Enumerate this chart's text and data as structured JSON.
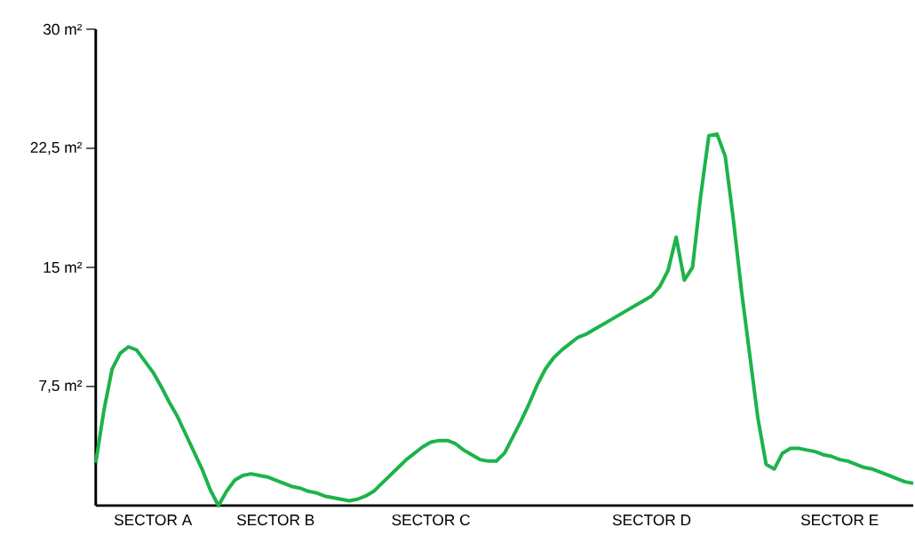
{
  "chart_data": {
    "type": "line",
    "color": "#1db34a",
    "marker": "none",
    "line_style": "solid",
    "categories": [
      null,
      null,
      null,
      null,
      null,
      null,
      null,
      "SECTOR A",
      null,
      null,
      null,
      null,
      null,
      null,
      null,
      null,
      null,
      null,
      null,
      null,
      null,
      null,
      "SECTOR B",
      null,
      null,
      null,
      null,
      null,
      null,
      null,
      null,
      null,
      null,
      null,
      null,
      null,
      null,
      null,
      null,
      null,
      null,
      "SECTOR C",
      null,
      null,
      null,
      null,
      null,
      null,
      null,
      null,
      null,
      null,
      null,
      null,
      null,
      null,
      null,
      null,
      null,
      null,
      null,
      null,
      null,
      null,
      null,
      null,
      null,
      null,
      "SECTOR D",
      null,
      null,
      null,
      null,
      null,
      null,
      null,
      null,
      null,
      null,
      null,
      null,
      null,
      null,
      null,
      null,
      null,
      null,
      null,
      null,
      null,
      null,
      "SECTOR E",
      null,
      null,
      null,
      null,
      null,
      null,
      null,
      null,
      null
    ],
    "values": [
      2.7,
      6.0,
      8.6,
      9.6,
      10.0,
      9.8,
      9.1,
      8.4,
      7.5,
      6.5,
      5.6,
      4.5,
      3.4,
      2.3,
      1.0,
      0.0,
      0.9,
      1.6,
      1.9,
      2.0,
      1.9,
      1.8,
      1.6,
      1.4,
      1.2,
      1.1,
      0.9,
      0.8,
      0.6,
      0.5,
      0.4,
      0.3,
      0.4,
      0.6,
      0.9,
      1.4,
      1.9,
      2.4,
      2.9,
      3.3,
      3.7,
      4.0,
      4.1,
      4.1,
      3.9,
      3.5,
      3.2,
      2.9,
      2.8,
      2.8,
      3.3,
      4.3,
      5.3,
      6.4,
      7.6,
      8.6,
      9.3,
      9.8,
      10.2,
      10.6,
      10.8,
      11.1,
      11.4,
      11.7,
      12.0,
      12.3,
      12.6,
      12.9,
      13.2,
      13.8,
      14.8,
      16.9,
      14.2,
      15.0,
      19.5,
      23.3,
      23.4,
      22.0,
      18.0,
      13.5,
      9.5,
      5.5,
      2.6,
      2.3,
      3.3,
      3.6,
      3.6,
      3.5,
      3.4,
      3.2,
      3.1,
      2.9,
      2.8,
      2.6,
      2.4,
      2.3,
      2.1,
      1.9,
      1.7,
      1.5,
      1.4
    ],
    "ylim": [
      0,
      30
    ],
    "yticks": [
      {
        "value": 7.5,
        "label": "7,5 m²"
      },
      {
        "value": 15,
        "label": "15 m²"
      },
      {
        "value": 22.5,
        "label": "22,5 m²"
      },
      {
        "value": 30,
        "label": "30 m²"
      }
    ]
  }
}
